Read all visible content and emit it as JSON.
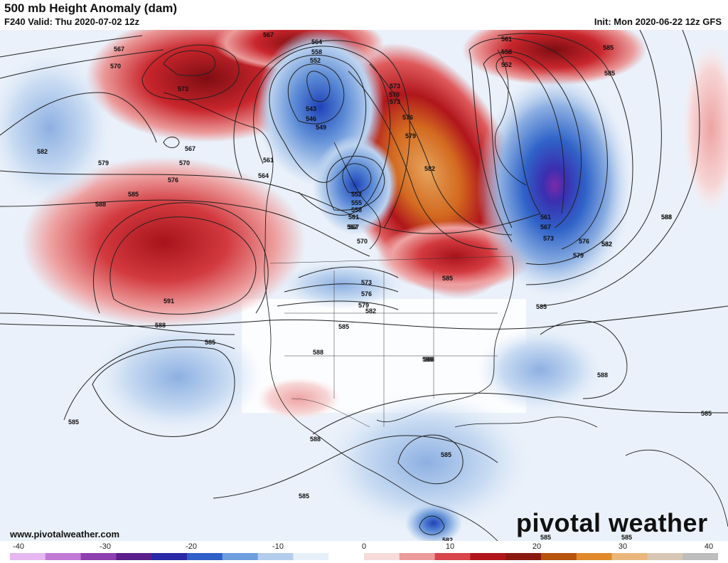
{
  "header": {
    "title": "500 mb Height Anomaly (dam)",
    "valid": "F240 Valid: Thu 2020-07-02 12z",
    "init": "Init: Mon 2020-06-22 12z GFS"
  },
  "footer": {
    "website": "www.pivotalweather.com",
    "logo_text": "pivotal weather"
  },
  "colorbar": {
    "ticks": [
      "-40",
      "-30",
      "-20",
      "-10",
      "0",
      "10",
      "20",
      "30",
      "40"
    ],
    "colors": [
      "#e6b8f0",
      "#c07ad6",
      "#8e3fb0",
      "#5a1f8a",
      "#2a2aa8",
      "#2f5fc8",
      "#6e9ede",
      "#b3cdec",
      "#e7eff9",
      "#ffffff",
      "#f7dada",
      "#ec9b9b",
      "#d8454a",
      "#b0161c",
      "#8a1a10",
      "#b8520f",
      "#e08a2c",
      "#e9b77d",
      "#d8c6b4",
      "#bdbdbd"
    ]
  },
  "map": {
    "anomaly_colors": {
      "strong_negative": "#5a2aa8",
      "negative": "#2f6fd0",
      "weak_negative": "#cfe0f4",
      "weak_positive": "#f5d2d2",
      "positive": "#d63a3e",
      "strong_positive": "#e08a2c"
    },
    "contour_labels": [
      "567",
      "564",
      "558",
      "552",
      "561",
      "558",
      "552",
      "567",
      "570",
      "573",
      "543",
      "546",
      "549",
      "561",
      "564",
      "552",
      "555",
      "558",
      "561",
      "567",
      "570",
      "576",
      "573",
      "579",
      "582",
      "585",
      "588",
      "591",
      "582",
      "585",
      "588",
      "585",
      "588",
      "588",
      "588",
      "585",
      "573",
      "576",
      "579",
      "582",
      "585",
      "588",
      "585",
      "585",
      "582",
      "585",
      "585",
      "567",
      "561",
      "567",
      "573",
      "576",
      "579",
      "582",
      "585",
      "588",
      "585",
      "570",
      "579",
      "570",
      "567",
      "573",
      "576",
      "588",
      "588",
      "585",
      "582",
      "585"
    ]
  }
}
